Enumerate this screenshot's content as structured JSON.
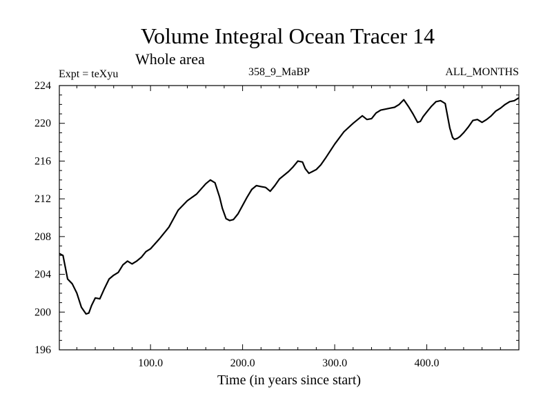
{
  "chart_data": {
    "type": "line",
    "title": "Volume Integral Ocean Tracer 14",
    "subtitle": "Whole area",
    "info_left": "Expt = teXyu",
    "info_center": "358_9_MaBP",
    "info_right": "ALL_MONTHS",
    "xlabel": "Time (in years since start)",
    "ylabel": "",
    "xlim": [
      1,
      500
    ],
    "ylim": [
      196,
      224
    ],
    "x_ticks": [
      100,
      200,
      300,
      400
    ],
    "x_tick_labels": [
      "100.0",
      "200.0",
      "300.0",
      "400.0"
    ],
    "y_ticks": [
      196,
      200,
      204,
      208,
      212,
      216,
      220,
      224
    ],
    "y_tick_labels": [
      "196",
      "200",
      "204",
      "208",
      "212",
      "216",
      "220",
      "224"
    ],
    "grid": false,
    "colors": {
      "line": "#000000"
    },
    "series": [
      {
        "x": [
          1,
          5,
          10,
          15,
          20,
          25,
          30,
          33,
          36,
          40,
          45,
          50,
          55,
          60,
          65,
          70,
          75,
          80,
          85,
          90,
          95,
          100,
          110,
          120,
          130,
          140,
          150,
          160,
          165,
          170,
          175,
          178,
          182,
          186,
          190,
          195,
          200,
          205,
          210,
          215,
          220,
          225,
          230,
          235,
          240,
          250,
          255,
          260,
          265,
          268,
          272,
          276,
          280,
          285,
          290,
          300,
          310,
          320,
          330,
          335,
          340,
          345,
          350,
          360,
          365,
          370,
          375,
          380,
          385,
          390,
          393,
          396,
          400,
          405,
          410,
          415,
          420,
          425,
          428,
          430,
          433,
          436,
          440,
          445,
          450,
          455,
          460,
          465,
          470,
          475,
          480,
          485,
          490,
          495,
          500
        ],
        "y": [
          206.2,
          206,
          203.5,
          203,
          202,
          200.5,
          199.8,
          199.9,
          200.7,
          201.5,
          201.4,
          202.5,
          203.5,
          203.9,
          204.2,
          205,
          205.4,
          205.1,
          205.4,
          205.8,
          206.4,
          206.7,
          207.8,
          209,
          210.8,
          211.8,
          212.5,
          213.6,
          214,
          213.7,
          212.2,
          211,
          209.9,
          209.7,
          209.8,
          210.4,
          211.3,
          212.2,
          213,
          213.4,
          213.3,
          213.2,
          212.8,
          213.4,
          214.1,
          214.9,
          215.4,
          216,
          215.9,
          215.2,
          214.7,
          214.9,
          215.1,
          215.6,
          216.3,
          217.8,
          219.1,
          220,
          220.8,
          220.4,
          220.5,
          221.1,
          221.4,
          221.6,
          221.7,
          222,
          222.5,
          221.8,
          221,
          220.1,
          220.2,
          220.7,
          221.2,
          221.8,
          222.3,
          222.4,
          222.1,
          219.5,
          218.5,
          218.3,
          218.4,
          218.6,
          219,
          219.6,
          220.3,
          220.4,
          220.1,
          220.4,
          220.8,
          221.3,
          221.6,
          222,
          222.3,
          222.4,
          222.7
        ]
      }
    ]
  }
}
